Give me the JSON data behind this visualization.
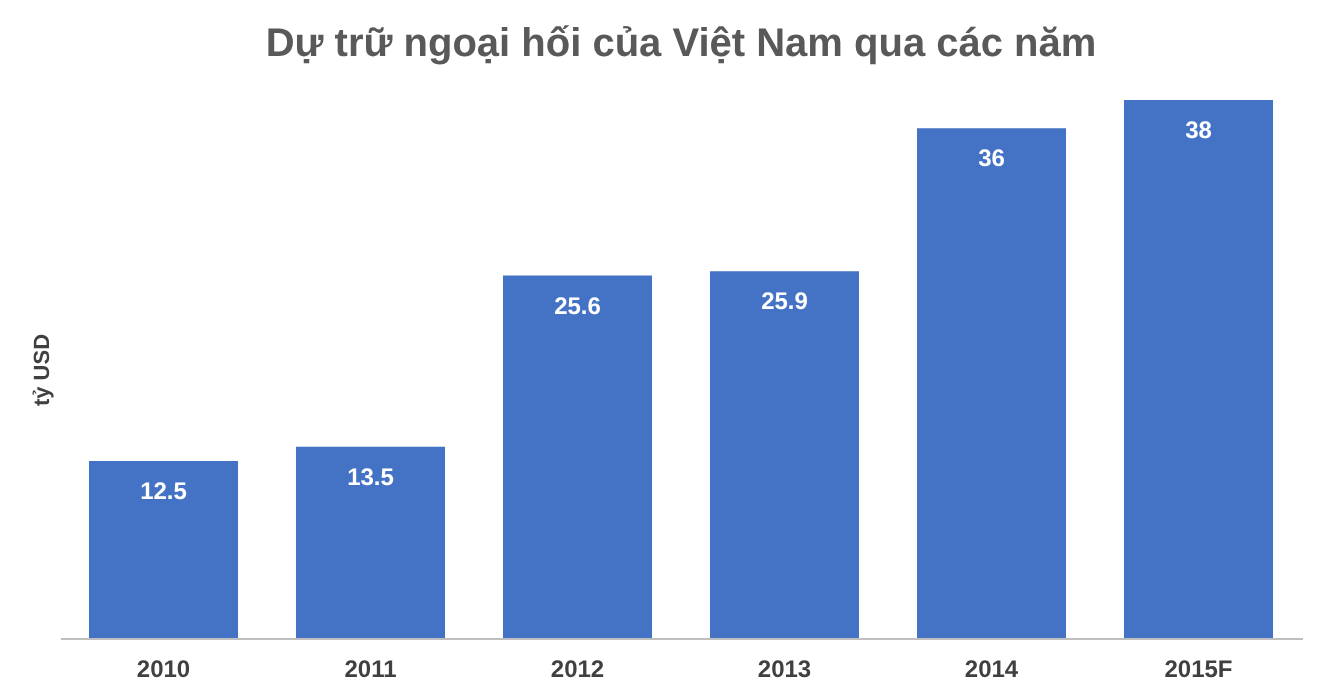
{
  "chart_data": {
    "type": "bar",
    "title": "Dự trữ ngoại hối của Việt Nam qua các năm",
    "ylabel": "tỷ USD",
    "categories": [
      "2010",
      "2011",
      "2012",
      "2013",
      "2014",
      "2015F"
    ],
    "values": [
      12.5,
      13.5,
      25.6,
      25.9,
      36,
      38
    ],
    "color": "#4472c4",
    "data_labels": true,
    "tick_labels": "x"
  }
}
